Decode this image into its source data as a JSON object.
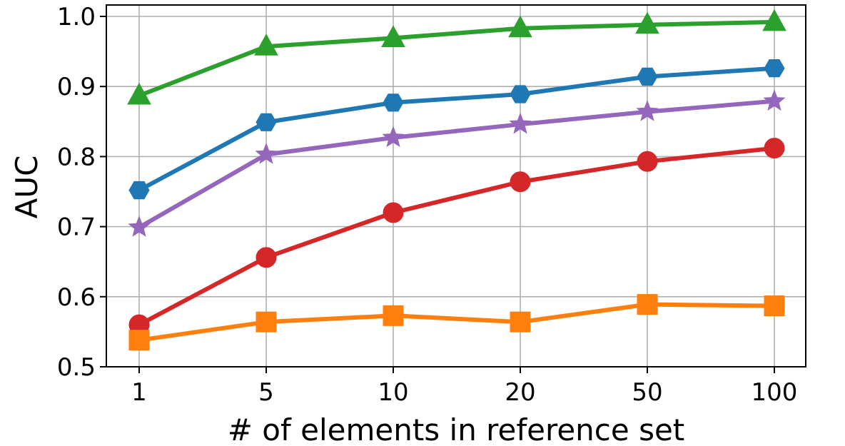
{
  "chart_data": {
    "type": "line",
    "categories": [
      "1",
      "5",
      "10",
      "20",
      "50",
      "100"
    ],
    "xlabel": "# of elements in reference set",
    "ylabel": "AUC",
    "ylim": [
      0.5,
      1.0
    ],
    "yticks": [
      "0.5",
      "0.6",
      "0.7",
      "0.8",
      "0.9",
      "1.0"
    ],
    "grid": true,
    "series": [
      {
        "color": "#2ca02c",
        "marker": "triangle",
        "values": [
          0.887,
          0.957,
          0.969,
          0.983,
          0.988,
          0.992
        ]
      },
      {
        "color": "#1f77b4",
        "marker": "hexagon",
        "values": [
          0.752,
          0.849,
          0.877,
          0.889,
          0.914,
          0.926
        ]
      },
      {
        "color": "#9467bd",
        "marker": "star",
        "values": [
          0.699,
          0.803,
          0.827,
          0.846,
          0.864,
          0.879
        ]
      },
      {
        "color": "#d62728",
        "marker": "circle",
        "values": [
          0.56,
          0.656,
          0.72,
          0.764,
          0.793,
          0.812
        ]
      },
      {
        "color": "#ff7f0e",
        "marker": "square",
        "values": [
          0.538,
          0.564,
          0.573,
          0.564,
          0.589,
          0.587
        ]
      }
    ]
  }
}
